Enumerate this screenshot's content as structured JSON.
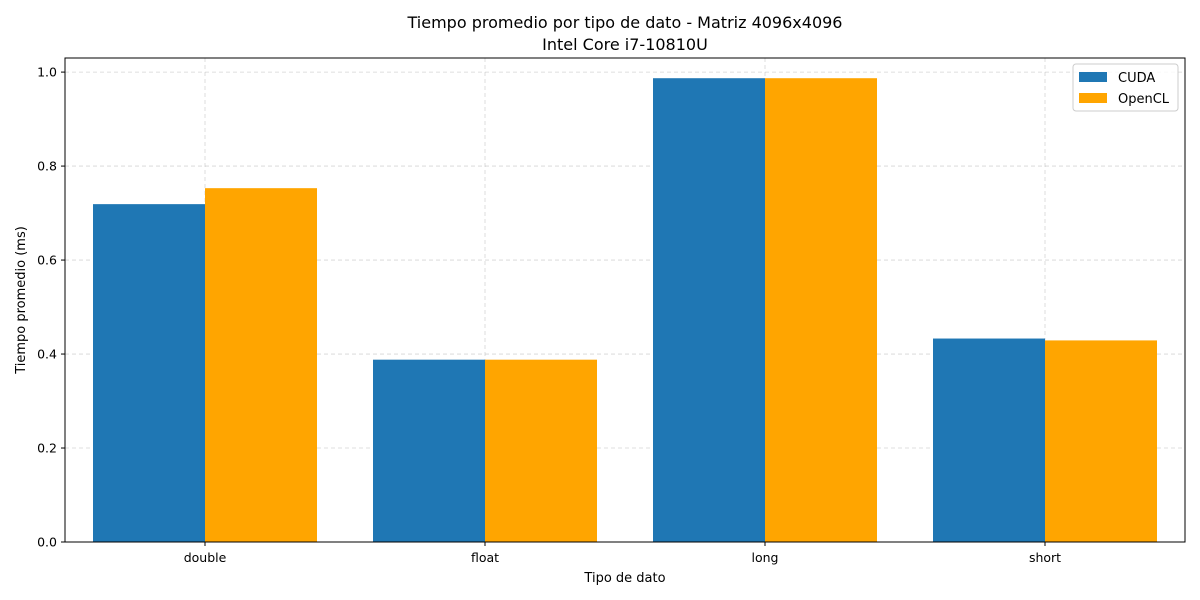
{
  "chart_data": {
    "type": "bar",
    "title": "Tiempo promedio por tipo de dato - Matriz 4096x4096",
    "subtitle": "Intel Core i7-10810U",
    "xlabel": "Tipo de dato",
    "ylabel": "Tiempo promedio (ms)",
    "categories": [
      "double",
      "float",
      "long",
      "short"
    ],
    "series": [
      {
        "name": "CUDA",
        "color": "#1f77b4",
        "values": [
          0.719,
          0.388,
          0.987,
          0.433
        ]
      },
      {
        "name": "OpenCL",
        "color": "#ffa500",
        "values": [
          0.753,
          0.388,
          0.987,
          0.429
        ]
      }
    ],
    "ylim": [
      0,
      1.03
    ],
    "yticks": [
      "0.0",
      "0.2",
      "0.4",
      "0.6",
      "0.8",
      "1.0"
    ],
    "grid": true,
    "legend_position": "top-right"
  }
}
